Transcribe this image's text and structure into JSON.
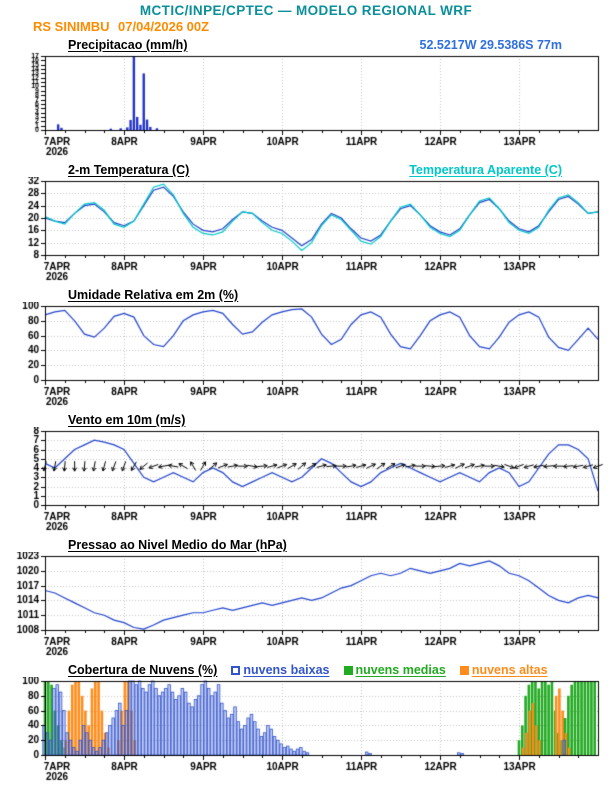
{
  "header": {
    "title": "MCTIC/INPE/CPTEC — MODELO REGIONAL WRF",
    "station": "RS SINIMBU",
    "run": "07/04/2026 00Z",
    "location": "52.5217W 29.5386S 77m",
    "colors": {
      "title": "#0b8f9b",
      "station_run": "#ff8c00",
      "location": "#2f6fde"
    }
  },
  "axis": {
    "x_hours": 168,
    "ticks": [
      {
        "hour": 0,
        "label": "7APR",
        "sublabel": "2026"
      },
      {
        "hour": 24,
        "label": "8APR"
      },
      {
        "hour": 48,
        "label": "9APR"
      },
      {
        "hour": 72,
        "label": "10APR"
      },
      {
        "hour": 96,
        "label": "11APR"
      },
      {
        "hour": 120,
        "label": "12APR"
      },
      {
        "hour": 144,
        "label": "13APR"
      }
    ]
  },
  "chart_data": [
    {
      "type": "bar",
      "title": "Precipitacao (mm/h)",
      "ylim": [
        0,
        17
      ],
      "yticks": [
        0,
        1,
        2,
        3,
        4,
        5,
        6,
        7,
        8,
        9,
        10,
        11,
        12,
        13,
        14,
        15,
        16,
        17
      ],
      "small_ylabels": true,
      "grid_y": false,
      "bar_color": "#2233cc",
      "entries": [
        [
          4,
          1.3
        ],
        [
          5,
          0.5
        ],
        [
          20,
          0.3
        ],
        [
          23,
          0.4
        ],
        [
          25,
          0.6
        ],
        [
          26,
          2.3
        ],
        [
          27,
          17
        ],
        [
          28,
          3
        ],
        [
          29,
          1.2
        ],
        [
          30,
          13
        ],
        [
          31,
          2.4
        ],
        [
          32,
          0.7
        ],
        [
          34,
          0.4
        ]
      ]
    },
    {
      "type": "line",
      "title": "2-m Temperatura (C)",
      "title2": "Temperatura Aparente (C)",
      "title2_color": "#00c8c8",
      "ylim": [
        8,
        32
      ],
      "yticks": [
        8,
        12,
        16,
        20,
        24,
        28,
        32
      ],
      "step_hours": 3,
      "series": [
        {
          "name": "2-m Temperatura (C)",
          "color": "#2244cc",
          "values": [
            20,
            19,
            18.5,
            21.5,
            24,
            24.5,
            22,
            18.5,
            17.5,
            19,
            24,
            29,
            30,
            27,
            22,
            18,
            16,
            15.5,
            16.5,
            19.5,
            22,
            21.5,
            19,
            17,
            16,
            13.5,
            11,
            13,
            18,
            21.5,
            20,
            16.5,
            13.5,
            12.5,
            14.5,
            19,
            23,
            24,
            21,
            17.5,
            15.5,
            14.5,
            16.5,
            21,
            25,
            26,
            23,
            19,
            16.5,
            15.5,
            17.5,
            22,
            26,
            27,
            24.5,
            21.5,
            22
          ]
        },
        {
          "name": "Temperatura Aparente (C)",
          "color": "#00c8c8",
          "values": [
            20.5,
            19,
            18,
            21.5,
            24.5,
            25,
            22.5,
            18,
            17,
            19,
            24.5,
            30,
            31,
            27.5,
            21.5,
            17,
            15,
            14.5,
            15.5,
            19,
            22,
            21.5,
            18.5,
            16,
            15,
            12.5,
            9.5,
            12,
            17.5,
            21,
            19.5,
            16,
            12.5,
            11.5,
            14,
            19,
            23.5,
            24.5,
            21,
            17,
            15,
            14,
            16,
            21,
            25.5,
            26.5,
            23,
            18.5,
            16,
            15,
            17,
            22.5,
            26.5,
            27.5,
            25,
            21.5,
            22
          ]
        }
      ]
    },
    {
      "type": "line",
      "title": "Umidade Relativa em 2m (%)",
      "ylim": [
        0,
        100
      ],
      "yticks": [
        0,
        20,
        40,
        60,
        80,
        100
      ],
      "step_hours": 3,
      "series": [
        {
          "name": "Umidade Relativa em 2m (%)",
          "color": "#2244cc",
          "values": [
            88,
            92,
            94,
            80,
            62,
            58,
            70,
            86,
            90,
            85,
            60,
            48,
            45,
            60,
            80,
            88,
            92,
            94,
            90,
            75,
            62,
            65,
            78,
            88,
            92,
            95,
            96,
            85,
            62,
            48,
            55,
            75,
            88,
            92,
            85,
            62,
            45,
            42,
            60,
            80,
            88,
            92,
            85,
            60,
            45,
            42,
            58,
            78,
            88,
            92,
            85,
            58,
            44,
            40,
            55,
            70,
            55
          ]
        }
      ]
    },
    {
      "type": "line",
      "title": "Vento em 10m (m/s)",
      "ylim": [
        0,
        8
      ],
      "yticks": [
        0,
        1,
        2,
        3,
        4,
        5,
        6,
        7,
        8
      ],
      "step_hours": 3,
      "series": [
        {
          "name": "Vento em 10m (m/s)",
          "color": "#2244cc",
          "values": [
            4.5,
            4,
            5,
            6,
            6.5,
            7,
            6.8,
            6.5,
            6,
            4.5,
            3,
            2.5,
            3,
            3.5,
            3,
            2.5,
            3.5,
            4,
            3.5,
            2.5,
            2,
            2.5,
            3,
            3.5,
            3,
            2.5,
            3,
            4,
            5,
            4.5,
            3.5,
            2.5,
            2,
            2.5,
            3.5,
            4,
            4.5,
            4,
            3.5,
            3,
            2.5,
            3,
            3.5,
            3,
            2.5,
            3.5,
            4,
            3.5,
            2,
            2.5,
            4,
            5.5,
            6.5,
            6.5,
            6,
            5,
            1.5
          ]
        }
      ],
      "barbs": {
        "level": 4.2,
        "step_hours": 3,
        "color": "#000000",
        "angles": [
          255,
          260,
          265,
          270,
          265,
          260,
          255,
          250,
          250,
          240,
          220,
          200,
          190,
          170,
          150,
          120,
          60,
          40,
          20,
          10,
          0,
          350,
          5,
          15,
          20,
          30,
          40,
          30,
          15,
          5,
          0,
          10,
          15,
          25,
          35,
          30,
          20,
          10,
          0,
          355,
          5,
          15,
          25,
          20,
          10,
          0,
          350,
          340,
          200,
          195,
          190,
          185,
          180,
          185,
          190,
          195,
          200
        ]
      }
    },
    {
      "type": "line",
      "title": "Pressao ao Nivel Medio do Mar (hPa)",
      "ylim": [
        1008,
        1023
      ],
      "yticks": [
        1008,
        1011,
        1014,
        1017,
        1020,
        1023
      ],
      "step_hours": 3,
      "series": [
        {
          "name": "Pressao ao Nivel Medio do Mar (hPa)",
          "color": "#2244cc",
          "values": [
            1016,
            1015.5,
            1014.5,
            1013.5,
            1012.5,
            1011.5,
            1011,
            1010,
            1009.5,
            1008.5,
            1008.2,
            1009,
            1010,
            1010.5,
            1011,
            1011.5,
            1011.5,
            1012,
            1012.5,
            1012,
            1012.5,
            1013,
            1013.5,
            1013,
            1013.5,
            1014,
            1014.5,
            1014,
            1014.5,
            1015.5,
            1016.5,
            1017,
            1018,
            1019,
            1019.5,
            1019,
            1019.5,
            1020.5,
            1020,
            1019.5,
            1020,
            1020.5,
            1021.5,
            1021,
            1021.5,
            1022,
            1021,
            1019.5,
            1019,
            1018,
            1016.5,
            1015,
            1014,
            1013.5,
            1014.5,
            1015,
            1014.5
          ]
        }
      ]
    },
    {
      "type": "cloud",
      "title": "Cobertura de Nuvens (%)",
      "ylim": [
        0,
        100
      ],
      "yticks": [
        0,
        20,
        40,
        60,
        80,
        100
      ],
      "colors": {
        "low": "#3355cc",
        "low_fill": "rgba(80,110,220,0.35)",
        "mid": "#22aa22",
        "high": "#ff8c1a"
      },
      "legend": [
        {
          "label": "nuvens baixas",
          "color": "#3355cc",
          "filled": false
        },
        {
          "label": "nuvens medias",
          "color": "#22aa22",
          "filled": true
        },
        {
          "label": "nuvens altas",
          "color": "#ff8c1a",
          "filled": true
        }
      ],
      "entries": [
        [
          0,
          40,
          100,
          0
        ],
        [
          1,
          30,
          100,
          0
        ],
        [
          2,
          20,
          95,
          0
        ],
        [
          3,
          90,
          60,
          0
        ],
        [
          4,
          95,
          40,
          0
        ],
        [
          5,
          85,
          20,
          0
        ],
        [
          6,
          60,
          10,
          20
        ],
        [
          7,
          30,
          0,
          60
        ],
        [
          8,
          20,
          0,
          95
        ],
        [
          9,
          10,
          0,
          100
        ],
        [
          10,
          5,
          0,
          100
        ],
        [
          11,
          20,
          0,
          80
        ],
        [
          12,
          40,
          0,
          60
        ],
        [
          13,
          30,
          0,
          40
        ],
        [
          14,
          20,
          0,
          90
        ],
        [
          15,
          10,
          0,
          100
        ],
        [
          16,
          5,
          0,
          100
        ],
        [
          17,
          10,
          0,
          60
        ],
        [
          18,
          20,
          0,
          30
        ],
        [
          19,
          30,
          0,
          10
        ],
        [
          20,
          40,
          0,
          0
        ],
        [
          21,
          50,
          0,
          0
        ],
        [
          22,
          60,
          0,
          20
        ],
        [
          23,
          70,
          0,
          60
        ],
        [
          24,
          40,
          0,
          100
        ],
        [
          25,
          60,
          0,
          100
        ],
        [
          26,
          100,
          0,
          60
        ],
        [
          27,
          100,
          0,
          20
        ],
        [
          28,
          95,
          0,
          0
        ],
        [
          29,
          100,
          0,
          0
        ],
        [
          30,
          90,
          0,
          0
        ],
        [
          31,
          85,
          0,
          0
        ],
        [
          32,
          95,
          0,
          0
        ],
        [
          33,
          100,
          0,
          0
        ],
        [
          34,
          90,
          0,
          0
        ],
        [
          35,
          80,
          0,
          0
        ],
        [
          36,
          85,
          0,
          0
        ],
        [
          37,
          90,
          0,
          0
        ],
        [
          38,
          95,
          0,
          0
        ],
        [
          39,
          85,
          0,
          0
        ],
        [
          40,
          75,
          0,
          0
        ],
        [
          41,
          80,
          0,
          0
        ],
        [
          42,
          90,
          0,
          0
        ],
        [
          43,
          85,
          0,
          0
        ],
        [
          44,
          70,
          0,
          0
        ],
        [
          45,
          65,
          0,
          0
        ],
        [
          46,
          75,
          0,
          0
        ],
        [
          47,
          80,
          0,
          0
        ],
        [
          48,
          95,
          0,
          0
        ],
        [
          49,
          100,
          0,
          0
        ],
        [
          50,
          90,
          0,
          0
        ],
        [
          51,
          80,
          0,
          0
        ],
        [
          52,
          85,
          0,
          0
        ],
        [
          53,
          95,
          0,
          0
        ],
        [
          54,
          70,
          0,
          0
        ],
        [
          55,
          60,
          0,
          0
        ],
        [
          56,
          50,
          0,
          0
        ],
        [
          57,
          55,
          0,
          0
        ],
        [
          58,
          65,
          0,
          0
        ],
        [
          59,
          45,
          0,
          0
        ],
        [
          60,
          35,
          0,
          0
        ],
        [
          61,
          40,
          0,
          0
        ],
        [
          62,
          50,
          0,
          0
        ],
        [
          63,
          55,
          0,
          0
        ],
        [
          64,
          45,
          0,
          0
        ],
        [
          65,
          35,
          0,
          0
        ],
        [
          66,
          25,
          0,
          0
        ],
        [
          67,
          30,
          0,
          0
        ],
        [
          68,
          40,
          0,
          0
        ],
        [
          69,
          35,
          0,
          0
        ],
        [
          70,
          25,
          0,
          0
        ],
        [
          71,
          20,
          0,
          0
        ],
        [
          72,
          15,
          0,
          0
        ],
        [
          73,
          10,
          0,
          0
        ],
        [
          74,
          12,
          0,
          0
        ],
        [
          75,
          8,
          0,
          0
        ],
        [
          76,
          5,
          0,
          0
        ],
        [
          77,
          8,
          0,
          0
        ],
        [
          78,
          10,
          0,
          0
        ],
        [
          79,
          5,
          0,
          0
        ],
        [
          80,
          3,
          0,
          0
        ],
        [
          98,
          4,
          0,
          0
        ],
        [
          99,
          2,
          0,
          0
        ],
        [
          126,
          3,
          0,
          0
        ],
        [
          127,
          2,
          0,
          0
        ],
        [
          144,
          0,
          20,
          0
        ],
        [
          145,
          0,
          40,
          10
        ],
        [
          146,
          0,
          80,
          30
        ],
        [
          147,
          0,
          95,
          60
        ],
        [
          148,
          0,
          100,
          70
        ],
        [
          149,
          0,
          100,
          40
        ],
        [
          150,
          0,
          90,
          20
        ],
        [
          151,
          0,
          100,
          0
        ],
        [
          152,
          0,
          100,
          0
        ],
        [
          153,
          0,
          95,
          0
        ],
        [
          154,
          0,
          100,
          0
        ],
        [
          155,
          0,
          60,
          80
        ],
        [
          156,
          0,
          30,
          90
        ],
        [
          157,
          0,
          20,
          60
        ],
        [
          158,
          20,
          50,
          30
        ],
        [
          159,
          0,
          80,
          10
        ],
        [
          160,
          0,
          95,
          0
        ],
        [
          161,
          0,
          100,
          0
        ],
        [
          162,
          0,
          100,
          0
        ],
        [
          163,
          0,
          100,
          0
        ],
        [
          164,
          0,
          100,
          0
        ],
        [
          165,
          0,
          100,
          0
        ],
        [
          166,
          0,
          100,
          0
        ],
        [
          167,
          0,
          100,
          0
        ]
      ]
    }
  ]
}
